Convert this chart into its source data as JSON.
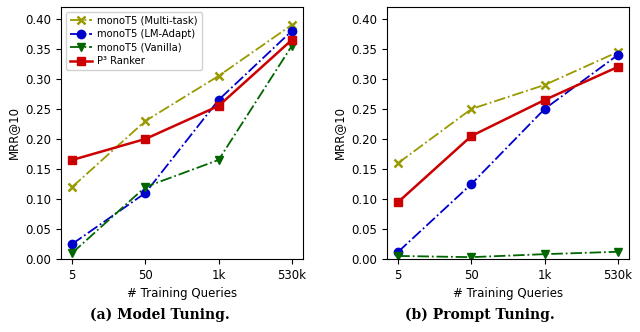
{
  "x_labels": [
    "5",
    "50",
    "1k",
    "530k"
  ],
  "x_positions": [
    0,
    1,
    2,
    3
  ],
  "model_tuning": {
    "multi_task": [
      0.12,
      0.23,
      0.305,
      0.39
    ],
    "lm_adapt": [
      0.025,
      0.11,
      0.265,
      0.38
    ],
    "vanilla": [
      0.01,
      0.12,
      0.165,
      0.355
    ],
    "p3_ranker": [
      0.165,
      0.2,
      0.255,
      0.365
    ]
  },
  "prompt_tuning": {
    "multi_task": [
      0.16,
      0.25,
      0.29,
      0.345
    ],
    "lm_adapt": [
      0.012,
      0.125,
      0.25,
      0.34
    ],
    "vanilla": [
      0.005,
      0.003,
      0.008,
      0.012
    ],
    "p3_ranker": [
      0.095,
      0.205,
      0.265,
      0.32
    ]
  },
  "colors": {
    "multi_task": "#999900",
    "lm_adapt": "#0000cc",
    "vanilla": "#006600",
    "p3_ranker": "#cc0000"
  },
  "ylabel": "MRR@10",
  "xlabel": "# Training Queries",
  "title_a": "(a) Model Tuning.",
  "title_b": "(b) Prompt Tuning.",
  "legend_labels": [
    "monoT5 (Multi-task)",
    "monoT5 (LM-Adapt)",
    "monoT5 (Vanilla)",
    "P³ Ranker"
  ],
  "ylim": [
    0,
    0.42
  ],
  "figsize": [
    6.4,
    3.32
  ],
  "dpi": 100
}
